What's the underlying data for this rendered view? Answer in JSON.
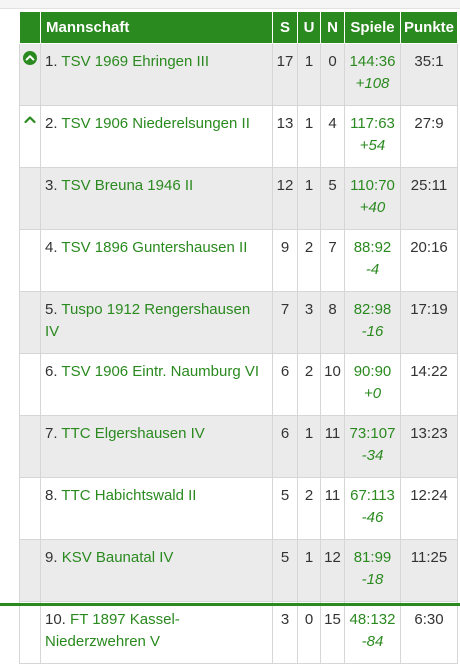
{
  "header": {
    "mannschaft": "Mannschaft",
    "s": "S",
    "u": "U",
    "n": "N",
    "spiele": "Spiele",
    "punkte": "Punkte"
  },
  "rows": [
    {
      "rank": "1.",
      "team": "TSV 1969 Ehringen III",
      "s": "17",
      "u": "1",
      "n": "0",
      "spiele": "144:36",
      "diff": "+108",
      "punkte": "35:1",
      "indicator": "circle-chevron-up-icon"
    },
    {
      "rank": "2.",
      "team": "TSV 1906 Niederelsungen II",
      "s": "13",
      "u": "1",
      "n": "4",
      "spiele": "117:63",
      "diff": "+54",
      "punkte": "27:9",
      "indicator": "chevron-up-icon"
    },
    {
      "rank": "3.",
      "team": "TSV Breuna 1946 II",
      "s": "12",
      "u": "1",
      "n": "5",
      "spiele": "110:70",
      "diff": "+40",
      "punkte": "25:11",
      "indicator": ""
    },
    {
      "rank": "4.",
      "team": "TSV 1896 Guntershausen II",
      "s": "9",
      "u": "2",
      "n": "7",
      "spiele": "88:92",
      "diff": "-4",
      "punkte": "20:16",
      "indicator": ""
    },
    {
      "rank": "5.",
      "team": "Tuspo 1912 Rengershausen IV",
      "s": "7",
      "u": "3",
      "n": "8",
      "spiele": "82:98",
      "diff": "-16",
      "punkte": "17:19",
      "indicator": ""
    },
    {
      "rank": "6.",
      "team": "TSV 1906 Eintr. Naumburg VI",
      "s": "6",
      "u": "2",
      "n": "10",
      "spiele": "90:90",
      "diff": "+0",
      "punkte": "14:22",
      "indicator": ""
    },
    {
      "rank": "7.",
      "team": "TTC Elgershausen IV",
      "s": "6",
      "u": "1",
      "n": "11",
      "spiele": "73:107",
      "diff": "-34",
      "punkte": "13:23",
      "indicator": ""
    },
    {
      "rank": "8.",
      "team": "TTC Habichtswald II",
      "s": "5",
      "u": "2",
      "n": "11",
      "spiele": "67:113",
      "diff": "-46",
      "punkte": "12:24",
      "indicator": ""
    },
    {
      "rank": "9.",
      "team": "KSV Baunatal IV",
      "s": "5",
      "u": "1",
      "n": "12",
      "spiele": "81:99",
      "diff": "-18",
      "punkte": "11:25",
      "indicator": ""
    },
    {
      "rank": "10.",
      "team": "FT 1897 Kassel-Niederzwehren V",
      "s": "3",
      "u": "0",
      "n": "15",
      "spiele": "48:132",
      "diff": "-84",
      "punkte": "6:30",
      "indicator": ""
    }
  ],
  "colors": {
    "header_bg": "#2a8a1f",
    "link_green": "#2a8a1f",
    "row_alt": "#ebebeb",
    "text": "#333333"
  }
}
